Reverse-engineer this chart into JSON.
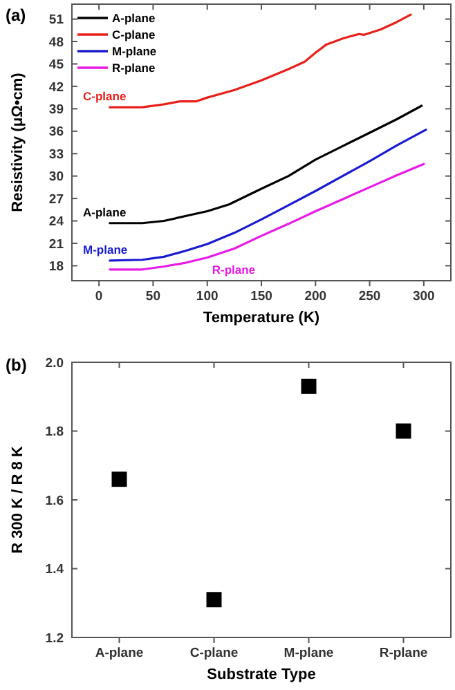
{
  "chart_data": [
    {
      "type": "line",
      "title": "(a)",
      "xlabel": "Temperature (K)",
      "ylabel": "Resistivity (μΩ•cm)",
      "xlim": [
        -25,
        325
      ],
      "ylim": [
        16,
        53
      ],
      "xticks": [
        0,
        50,
        100,
        150,
        200,
        250,
        300
      ],
      "yticks": [
        18,
        21,
        24,
        27,
        30,
        33,
        36,
        39,
        42,
        45,
        48,
        51
      ],
      "legend": "top left",
      "grid": false,
      "line_style": "solid",
      "marker": "none",
      "series": [
        {
          "name": "A-plane",
          "color": "#000000",
          "x": [
            10,
            40,
            60,
            100,
            120,
            150,
            175,
            200,
            225,
            250,
            275,
            298
          ],
          "values": [
            23.7,
            23.7,
            24.0,
            25.3,
            26.2,
            28.3,
            30.0,
            32.2,
            34.0,
            35.8,
            37.6,
            39.4
          ]
        },
        {
          "name": "C-plane",
          "color": "#e8201a",
          "x": [
            10,
            40,
            60,
            75,
            90,
            100,
            125,
            150,
            175,
            190,
            200,
            210,
            225,
            240,
            245,
            260,
            275,
            288
          ],
          "values": [
            39.2,
            39.2,
            39.6,
            40.0,
            40.0,
            40.5,
            41.5,
            42.8,
            44.3,
            45.3,
            46.5,
            47.6,
            48.4,
            49.0,
            48.9,
            49.6,
            50.6,
            51.6
          ]
        },
        {
          "name": "M-plane",
          "color": "#1a1ad0",
          "x": [
            10,
            40,
            60,
            80,
            100,
            125,
            150,
            175,
            200,
            225,
            250,
            275,
            302
          ],
          "values": [
            18.7,
            18.8,
            19.2,
            20.0,
            20.9,
            22.4,
            24.2,
            26.1,
            28.0,
            30.0,
            32.0,
            34.1,
            36.2
          ]
        },
        {
          "name": "R-plane",
          "color": "#e81ae8",
          "x": [
            10,
            40,
            60,
            80,
            100,
            125,
            150,
            175,
            200,
            225,
            250,
            275,
            300
          ],
          "values": [
            17.5,
            17.5,
            17.9,
            18.4,
            19.1,
            20.3,
            22.0,
            23.6,
            25.3,
            26.9,
            28.5,
            30.1,
            31.6
          ]
        }
      ],
      "annotations": [
        "C-plane",
        "A-plane",
        "M-plane",
        "R-plane"
      ]
    },
    {
      "type": "scatter",
      "title": "(b)",
      "xlabel": "Substrate Type",
      "ylabel": "R 300 K / R 8 K",
      "categories": [
        "A-plane",
        "C-plane",
        "M-plane",
        "R-plane"
      ],
      "ylim": [
        1.2,
        2.0
      ],
      "yticks": [
        {
          "value": 1.2,
          "label": "1.2"
        },
        {
          "value": 1.4,
          "label": "1.4"
        },
        {
          "value": 1.6,
          "label": "1.6"
        },
        {
          "value": 1.8,
          "label": "1.8"
        },
        {
          "value": 2.0,
          "label": "2.0"
        }
      ],
      "marker": "square",
      "grid": false,
      "legend": false,
      "series": [
        {
          "color": "#000000",
          "values": [
            1.66,
            1.31,
            1.93,
            1.8
          ]
        }
      ]
    }
  ]
}
